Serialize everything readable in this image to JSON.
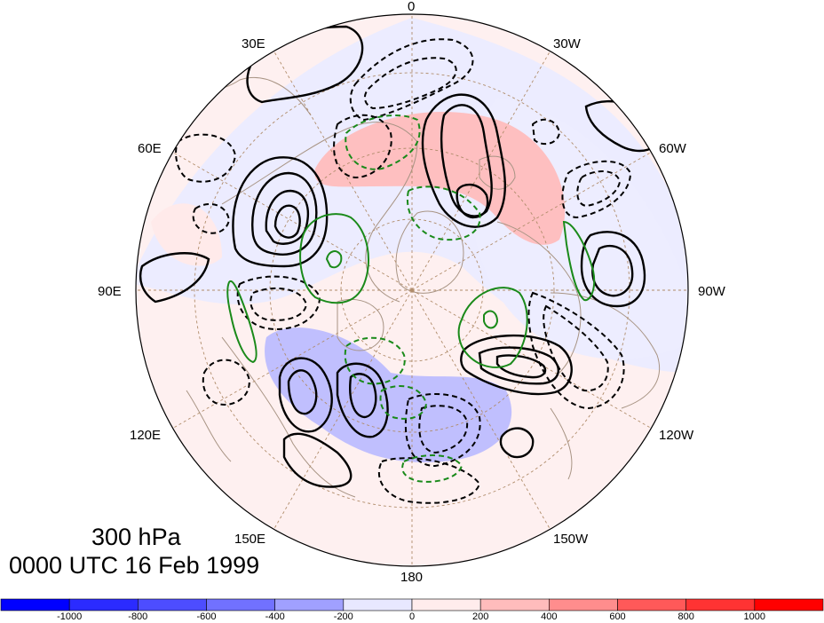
{
  "map": {
    "projection": "north-polar-stereographic",
    "longitude_labels": {
      "lon_0": "0",
      "lon_30w": "30W",
      "lon_60w": "60W",
      "lon_90w": "90W",
      "lon_120w": "120W",
      "lon_150w": "150W",
      "lon_180": "180",
      "lon_150e": "150E",
      "lon_120e": "120E",
      "lon_90e": "90E",
      "lon_60e": "60E",
      "lon_30e": "30E"
    },
    "title_level": "300 hPa",
    "title_time": "0000 UTC 16 Feb 1999",
    "contours": {
      "positive_color": "#000000",
      "negative_style": "dashed",
      "secondary_color": "#1a8a1a"
    },
    "fill_colors": {
      "positive_max": "#ff0000",
      "negative_max": "#0000ff",
      "background": "#ffffff"
    }
  },
  "colorbar": {
    "tick_labels": [
      "-1000",
      "-800",
      "-600",
      "-400",
      "-200",
      "0",
      "200",
      "400",
      "600",
      "800",
      "1000"
    ],
    "colors": [
      "#0000ff",
      "#2b2bff",
      "#4d4dff",
      "#7171ff",
      "#a0a0ff",
      "#e8e8ff",
      "#ffecec",
      "#ffbcbc",
      "#ff8d8d",
      "#ff5959",
      "#ff3333",
      "#ff0000"
    ]
  }
}
